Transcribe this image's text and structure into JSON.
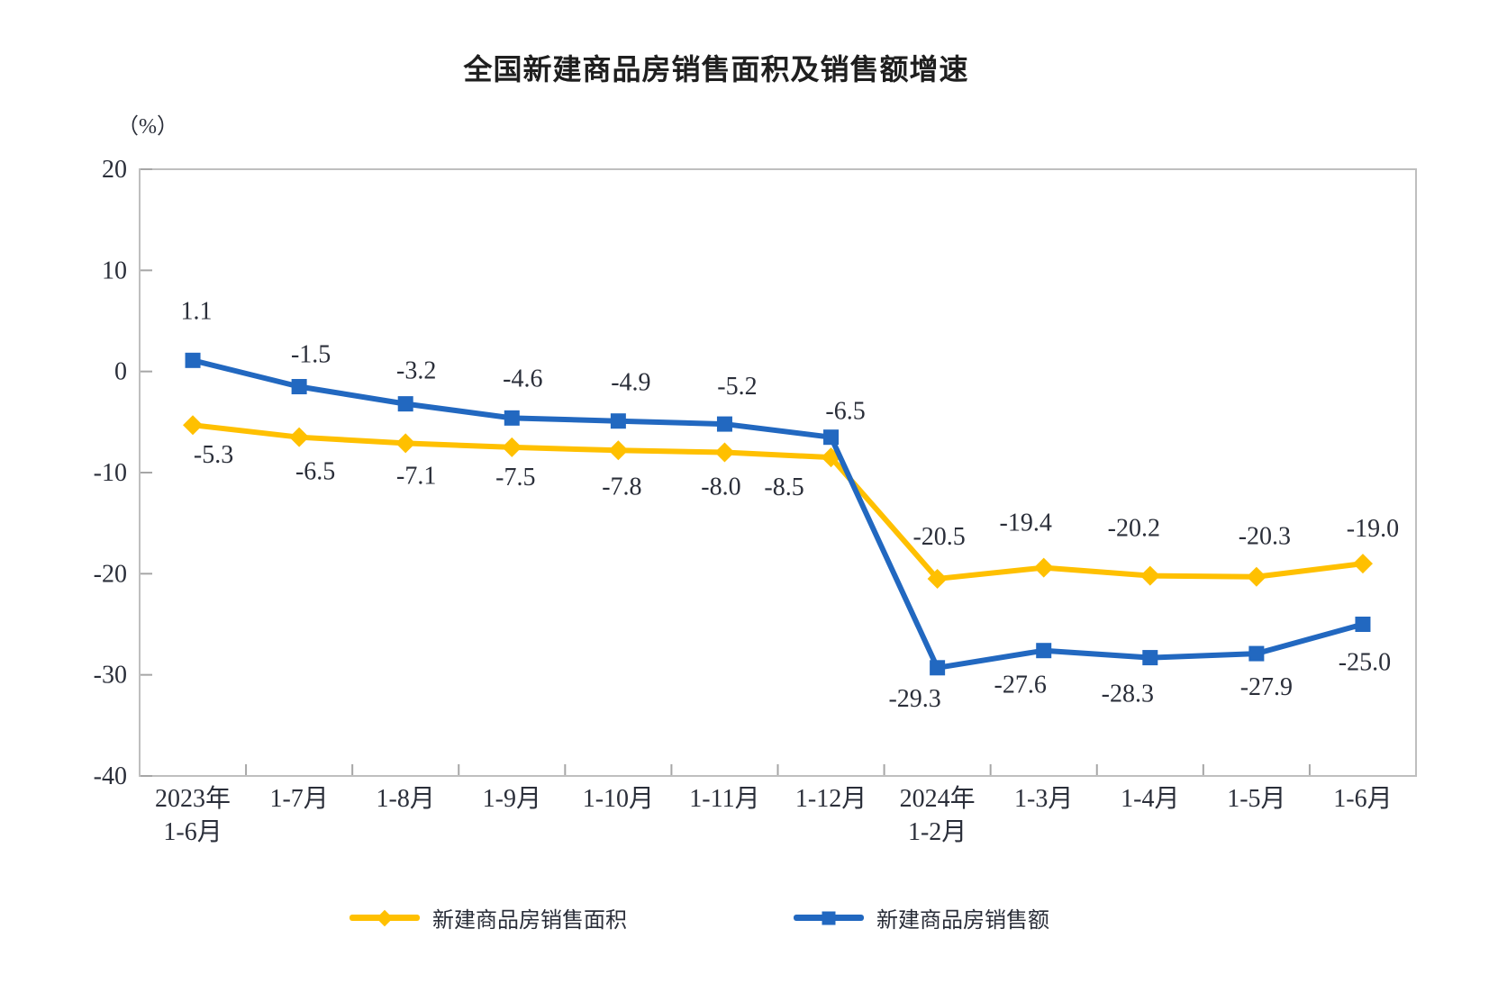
{
  "chart_data": {
    "type": "line",
    "title": "全国新建商品房销售面积及销售额增速",
    "unit_label": "（%）",
    "categories": [
      "2023年\n1-6月",
      "1-7月",
      "1-8月",
      "1-9月",
      "1-10月",
      "1-11月",
      "1-12月",
      "2024年\n1-2月",
      "1-3月",
      "1-4月",
      "1-5月",
      "1-6月"
    ],
    "ylim": [
      -40,
      20
    ],
    "yticks": [
      20,
      10,
      0,
      -10,
      -20,
      -30,
      -40
    ],
    "ytick_step": 10,
    "grid": false,
    "legend_position": "bottom",
    "series": [
      {
        "name": "新建商品房销售面积",
        "color": "#FFC000",
        "marker": "diamond",
        "values": [
          -5.3,
          -6.5,
          -7.1,
          -7.5,
          -7.8,
          -8.0,
          -8.5,
          -20.5,
          -19.4,
          -20.2,
          -20.3,
          -19.0
        ],
        "labels": [
          "-5.3",
          "-6.5",
          "-7.1",
          "-7.5",
          "-7.8",
          "-8.0",
          "-8.5",
          "-20.5",
          "-19.4",
          "-20.2",
          "-20.3",
          "-19.0"
        ],
        "label_offsets": [
          [
            23,
            33
          ],
          [
            18,
            38
          ],
          [
            12,
            36
          ],
          [
            4,
            33
          ],
          [
            4,
            40
          ],
          [
            -4,
            38
          ],
          [
            -52,
            33
          ],
          [
            2,
            -47
          ],
          [
            -20,
            -50
          ],
          [
            -18,
            -53
          ],
          [
            9,
            -45
          ],
          [
            11,
            -39
          ]
        ]
      },
      {
        "name": "新建商品房销售额",
        "color": "#2268C0",
        "marker": "square",
        "values": [
          1.1,
          -1.5,
          -3.2,
          -4.6,
          -4.9,
          -5.2,
          -6.5,
          -29.3,
          -27.6,
          -28.3,
          -27.9,
          -25.0
        ],
        "labels": [
          "1.1",
          "-1.5",
          "-3.2",
          "-4.6",
          "-4.9",
          "-5.2",
          "-6.5",
          "-29.3",
          "-27.6",
          "-28.3",
          "-27.9",
          "-25.0"
        ],
        "label_offsets": [
          [
            4,
            -55
          ],
          [
            13,
            -36
          ],
          [
            12,
            -37
          ],
          [
            12,
            -44
          ],
          [
            14,
            -43
          ],
          [
            14,
            -42
          ],
          [
            16,
            -29
          ],
          [
            -25,
            34
          ],
          [
            -26,
            38
          ],
          [
            -25,
            40
          ],
          [
            11,
            37
          ],
          [
            2,
            42
          ]
        ]
      }
    ],
    "colors": {
      "frame": "#bfbfbf",
      "tick": "#a6a6a6",
      "label_text": "#2a2e39"
    }
  }
}
